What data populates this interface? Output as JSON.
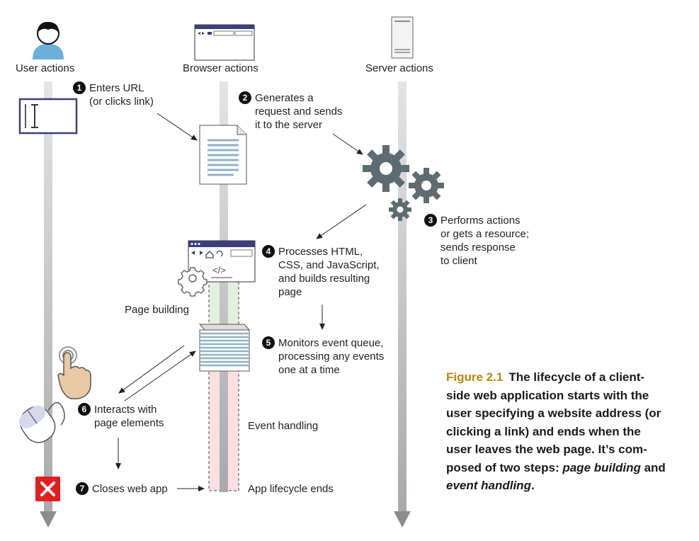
{
  "columns": {
    "user": "User actions",
    "browser": "Browser actions",
    "server": "Server actions"
  },
  "steps": [
    {
      "num": "1",
      "lines": [
        "Enters URL",
        "(or clicks link)"
      ]
    },
    {
      "num": "2",
      "lines": [
        "Generates a",
        "request and sends",
        "it to the server"
      ]
    },
    {
      "num": "3",
      "lines": [
        "Performs actions",
        "or gets a resource;",
        "sends response",
        "to client"
      ]
    },
    {
      "num": "4",
      "lines": [
        "Processes HTML,",
        "CSS, and JavaScript,",
        "and builds resulting",
        "page"
      ]
    },
    {
      "num": "5",
      "lines": [
        "Monitors event queue,",
        "processing any events",
        "one at a time"
      ]
    },
    {
      "num": "6",
      "lines": [
        "Interacts with",
        "page elements"
      ]
    },
    {
      "num": "7",
      "lines": [
        "Closes web app"
      ]
    }
  ],
  "phases": {
    "page_building": "Page building",
    "event_handling": "Event handling",
    "lifecycle_ends": "App lifecycle ends"
  },
  "code_glyph": "</>",
  "caption": {
    "figure": "Figure 2.1",
    "line1": "The lifecycle of a client-",
    "line2": "side web application starts with the",
    "line3": "user specifying a website address (or",
    "line4": "clicking a link) and ends when the",
    "line5": "user leaves the web page. It’s com-",
    "line6_a": "posed of two steps: ",
    "line6_em": "page building",
    "line6_b": " and",
    "line7_em": "event handling",
    "line7_b": "."
  },
  "colors": {
    "timeline": "#c8c8cc",
    "arrow_head": "#8c8c90",
    "page_building_band": "#e3f0e0",
    "event_handling_band": "#fbe0e0",
    "gear": "#5d6b72",
    "window_bar": "#3b3f7a",
    "close_button": "#e02020",
    "caption_accent": "#b8860b"
  }
}
